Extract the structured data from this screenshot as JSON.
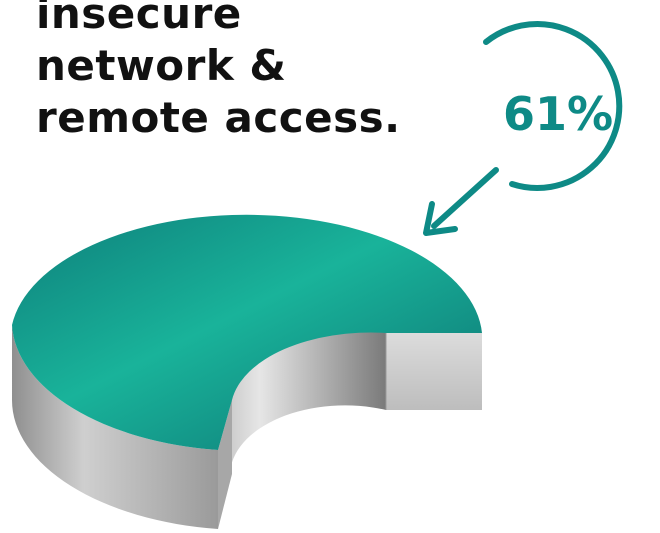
{
  "headline": {
    "lines": [
      "insecure",
      "network &",
      "remote access."
    ]
  },
  "callout": {
    "label": "61%"
  },
  "colors": {
    "accent": "#0e8a86",
    "accent_light": "#1ab39a",
    "remainder": "#a9a9a9",
    "text": "#111111"
  },
  "chart_data": {
    "type": "pie",
    "style": "3d-donut",
    "slices": [
      {
        "value": 61,
        "color": "#0e8a86"
      },
      {
        "value": 39,
        "color": "#ffffff"
      }
    ]
  }
}
